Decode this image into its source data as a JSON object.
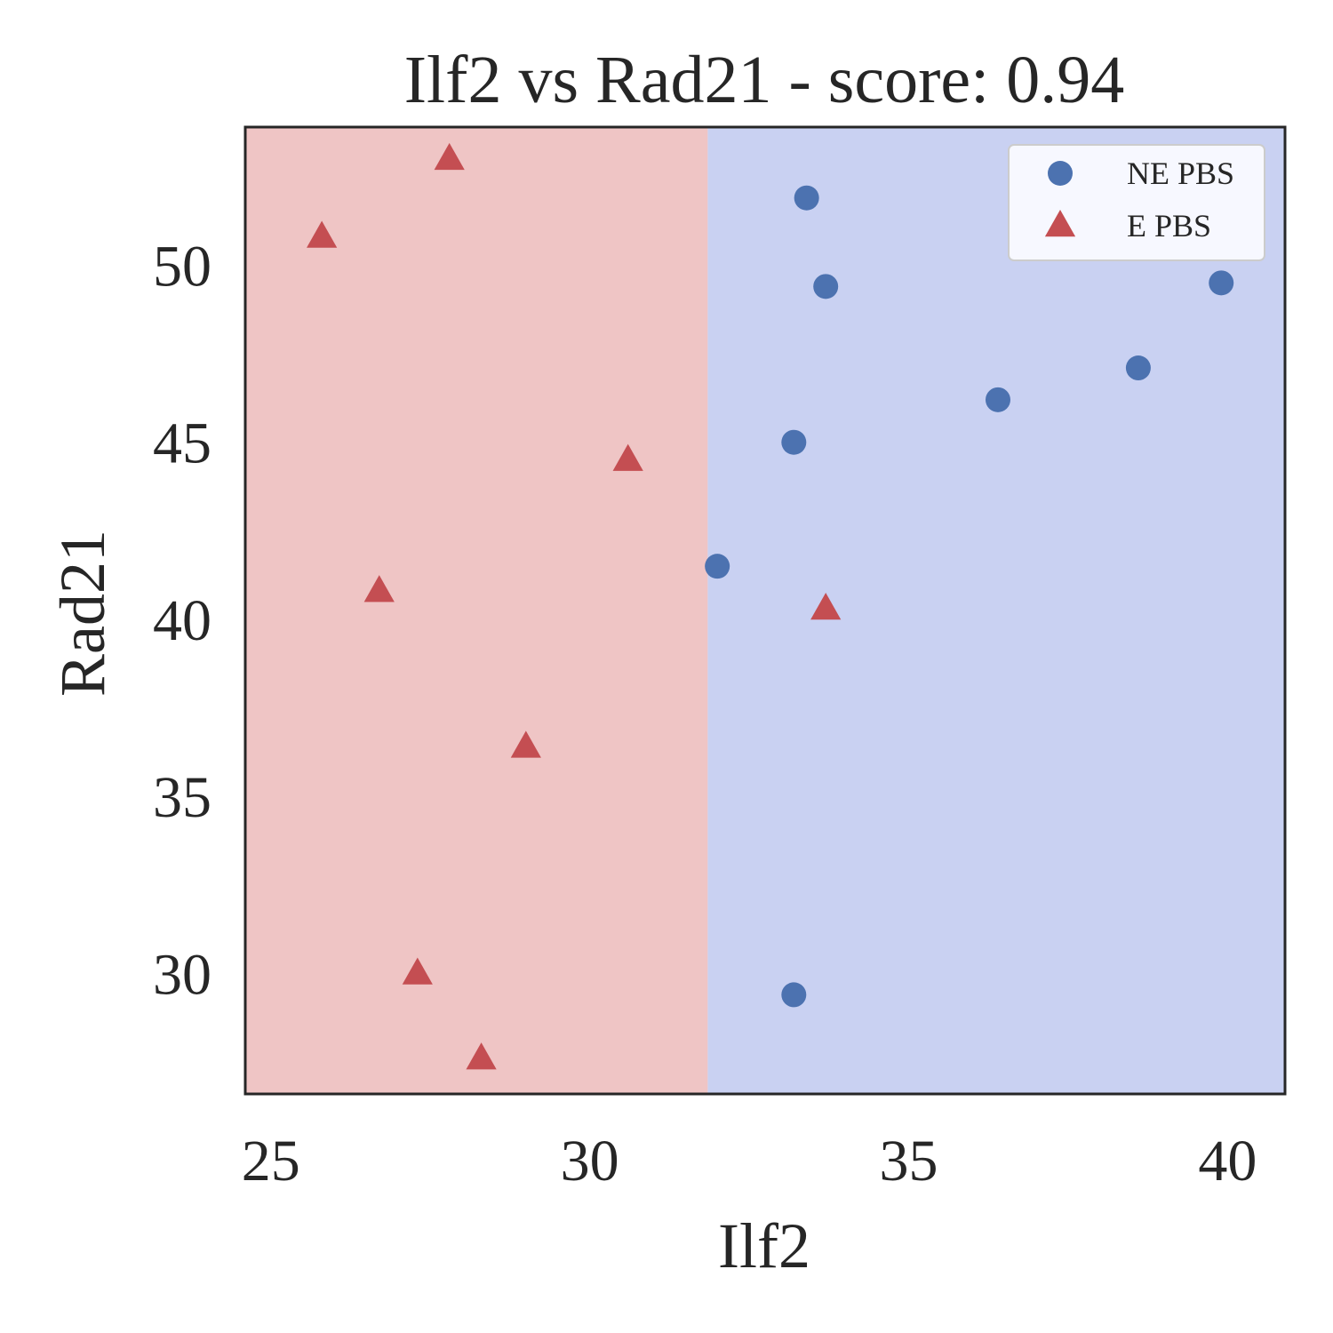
{
  "chart_data": {
    "type": "scatter",
    "title": "Ilf2 vs Rad21 - score: 0.94",
    "xlabel": "Ilf2",
    "ylabel": "Rad21",
    "xlim": [
      24.6,
      40.9
    ],
    "ylim": [
      26.6,
      53.9
    ],
    "xticks": [
      25,
      30,
      35,
      40
    ],
    "yticks": [
      30,
      35,
      40,
      45,
      50
    ],
    "grid": false,
    "legend_position": "top-right",
    "decision_boundary_x": 31.85,
    "regions": [
      {
        "class": "E PBS",
        "side": "left",
        "color": "#efc5c5"
      },
      {
        "class": "NE PBS",
        "side": "right",
        "color": "#c9d1f2"
      }
    ],
    "series": [
      {
        "name": "NE PBS",
        "marker": "circle",
        "color": "#4c72b0",
        "points": [
          {
            "x": 33.4,
            "y": 51.9
          },
          {
            "x": 33.7,
            "y": 49.4
          },
          {
            "x": 39.9,
            "y": 49.5
          },
          {
            "x": 38.6,
            "y": 47.1
          },
          {
            "x": 36.4,
            "y": 46.2
          },
          {
            "x": 33.2,
            "y": 45.0
          },
          {
            "x": 32.0,
            "y": 41.5
          },
          {
            "x": 33.2,
            "y": 29.4
          }
        ]
      },
      {
        "name": "E PBS",
        "marker": "triangle",
        "color": "#c44e52",
        "points": [
          {
            "x": 27.8,
            "y": 53.0
          },
          {
            "x": 25.8,
            "y": 50.8
          },
          {
            "x": 30.6,
            "y": 44.5
          },
          {
            "x": 26.7,
            "y": 40.8
          },
          {
            "x": 33.7,
            "y": 40.3
          },
          {
            "x": 29.0,
            "y": 36.4
          },
          {
            "x": 27.3,
            "y": 30.0
          },
          {
            "x": 28.3,
            "y": 27.6
          }
        ]
      }
    ]
  }
}
